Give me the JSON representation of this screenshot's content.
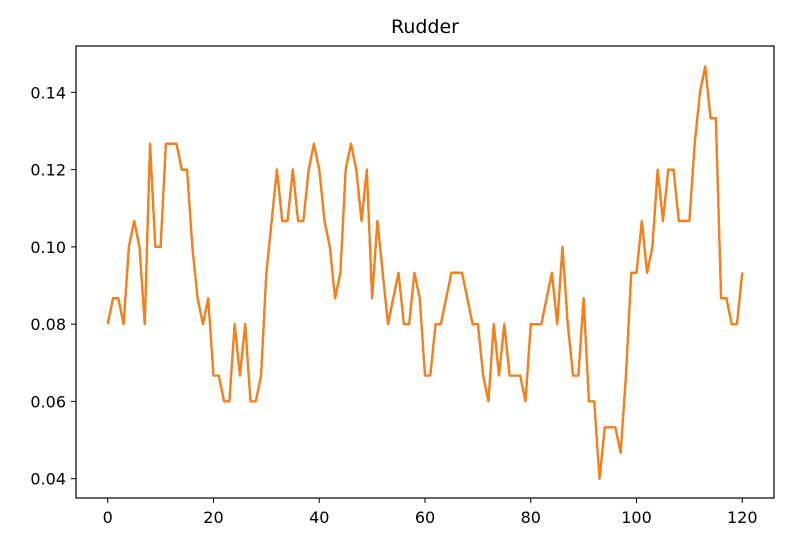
{
  "chart_data": {
    "type": "line",
    "title": "Rudder",
    "xlabel": "",
    "ylabel": "",
    "xlim": [
      -6,
      126
    ],
    "ylim": [
      0.035,
      0.152
    ],
    "xticks": [
      0,
      20,
      40,
      60,
      80,
      100,
      120
    ],
    "xtick_labels": [
      "0",
      "20",
      "40",
      "60",
      "80",
      "100",
      "120"
    ],
    "yticks": [
      0.04,
      0.06,
      0.08,
      0.1,
      0.12,
      0.14
    ],
    "ytick_labels": [
      "0.04",
      "0.06",
      "0.08",
      "0.10",
      "0.12",
      "0.14"
    ],
    "grid": false,
    "legend": "none",
    "colors": {
      "series_under": "#1f77b4",
      "series_over": "#ff7f0e"
    },
    "x": [
      0,
      1,
      2,
      3,
      4,
      5,
      6,
      7,
      8,
      9,
      10,
      11,
      12,
      13,
      14,
      15,
      16,
      17,
      18,
      19,
      20,
      21,
      22,
      23,
      24,
      25,
      26,
      27,
      28,
      29,
      30,
      31,
      32,
      33,
      34,
      35,
      36,
      37,
      38,
      39,
      40,
      41,
      42,
      43,
      44,
      45,
      46,
      47,
      48,
      49,
      50,
      51,
      52,
      53,
      54,
      55,
      56,
      57,
      58,
      59,
      60,
      61,
      62,
      63,
      64,
      65,
      66,
      67,
      68,
      69,
      70,
      71,
      72,
      73,
      74,
      75,
      76,
      77,
      78,
      79,
      80,
      81,
      82,
      83,
      84,
      85,
      86,
      87,
      88,
      89,
      90,
      91,
      92,
      93,
      94,
      95,
      96,
      97,
      98,
      99,
      100,
      101,
      102,
      103,
      104,
      105,
      106,
      107,
      108,
      109,
      110,
      111,
      112,
      113,
      114,
      115,
      116,
      117,
      118,
      119,
      120
    ],
    "series": [
      {
        "values": [
          0.08,
          0.0867,
          0.0867,
          0.08,
          0.1,
          0.1067,
          0.1,
          0.08,
          0.1267,
          0.1,
          0.1,
          0.1267,
          0.1267,
          0.1267,
          0.12,
          0.12,
          0.1,
          0.0867,
          0.08,
          0.0867,
          0.0667,
          0.0667,
          0.06,
          0.06,
          0.08,
          0.0667,
          0.08,
          0.06,
          0.06,
          0.0667,
          0.0933,
          0.1067,
          0.12,
          0.1067,
          0.1067,
          0.12,
          0.1067,
          0.1067,
          0.12,
          0.1267,
          0.12,
          0.1067,
          0.1,
          0.0867,
          0.0933,
          0.12,
          0.1267,
          0.12,
          0.1067,
          0.12,
          0.0867,
          0.1067,
          0.0933,
          0.08,
          0.0867,
          0.0933,
          0.08,
          0.08,
          0.0933,
          0.0867,
          0.0667,
          0.0667,
          0.08,
          0.08,
          0.0867,
          0.0933,
          0.0933,
          0.0933,
          0.0867,
          0.08,
          0.08,
          0.0667,
          0.06,
          0.08,
          0.0667,
          0.08,
          0.0667,
          0.0667,
          0.0667,
          0.06,
          0.08,
          0.08,
          0.08,
          0.0867,
          0.0933,
          0.08,
          0.1,
          0.08,
          0.0667,
          0.0667,
          0.0867,
          0.06,
          0.06,
          0.04,
          0.0533,
          0.0533,
          0.0533,
          0.0467,
          0.0667,
          0.0933,
          0.0933,
          0.1067,
          0.0933,
          0.1,
          0.12,
          0.1067,
          0.12,
          0.12,
          0.1067,
          0.1067,
          0.1067,
          0.1267,
          0.14,
          0.1467,
          0.1333,
          0.1333,
          0.0867,
          0.0867,
          0.08,
          0.08,
          0.0933
        ]
      },
      {
        "values": [
          0.08,
          0.0867,
          0.0867,
          0.08,
          0.1,
          0.1067,
          0.1,
          0.08,
          0.1267,
          0.1,
          0.1,
          0.1267,
          0.1267,
          0.1267,
          0.12,
          0.12,
          0.1,
          0.0867,
          0.08,
          0.0867,
          0.0667,
          0.0667,
          0.06,
          0.06,
          0.08,
          0.0667,
          0.08,
          0.06,
          0.06,
          0.0667,
          0.0933,
          0.1067,
          0.12,
          0.1067,
          0.1067,
          0.12,
          0.1067,
          0.1067,
          0.12,
          0.1267,
          0.12,
          0.1067,
          0.1,
          0.0867,
          0.0933,
          0.12,
          0.1267,
          0.12,
          0.1067,
          0.12,
          0.0867,
          0.1067,
          0.0933,
          0.08,
          0.0867,
          0.0933,
          0.08,
          0.08,
          0.0933,
          0.0867,
          0.0667,
          0.0667,
          0.08,
          0.08,
          0.0867,
          0.0933,
          0.0933,
          0.0933,
          0.0867,
          0.08,
          0.08,
          0.0667,
          0.06,
          0.08,
          0.0667,
          0.08,
          0.0667,
          0.0667,
          0.0667,
          0.06,
          0.08,
          0.08,
          0.08,
          0.0867,
          0.0933,
          0.08,
          0.1,
          0.08,
          0.0667,
          0.0667,
          0.0867,
          0.06,
          0.06,
          0.04,
          0.0533,
          0.0533,
          0.0533,
          0.0467,
          0.0667,
          0.0933,
          0.0933,
          0.1067,
          0.0933,
          0.1,
          0.12,
          0.1067,
          0.12,
          0.12,
          0.1067,
          0.1067,
          0.1067,
          0.1267,
          0.14,
          0.1467,
          0.1333,
          0.1333,
          0.0867,
          0.0867,
          0.08,
          0.08,
          0.0933
        ]
      }
    ]
  }
}
